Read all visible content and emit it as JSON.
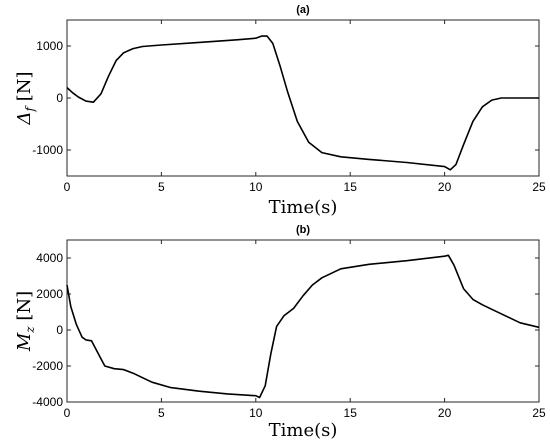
{
  "chart_data": [
    {
      "type": "line",
      "title": "(a)",
      "xlabel": "Time(s)",
      "ylabel_main": "Δ",
      "ylabel_sub": "f",
      "ylabel_unit": " [N]",
      "xlim": [
        0,
        25
      ],
      "ylim": [
        -1500,
        1500
      ],
      "xticks": [
        0,
        5,
        10,
        15,
        20,
        25
      ],
      "yticks": [
        1000,
        0,
        -1000
      ],
      "ytick_labels": [
        "1000",
        "0",
        "-1000"
      ],
      "grid": false,
      "series": [
        {
          "x": [
            0,
            0.3,
            0.6,
            1.0,
            1.4,
            1.8,
            2.2,
            2.6,
            3.0,
            3.5,
            4.0,
            5.0,
            7.0,
            9.0,
            10.0,
            10.3,
            10.6,
            10.9,
            11.3,
            11.7,
            12.2,
            12.8,
            13.5,
            14.5,
            16.0,
            18.0,
            20.0,
            20.3,
            20.6,
            21.0,
            21.5,
            22.0,
            22.5,
            23.0,
            24.0,
            25.0
          ],
          "y": [
            200,
            100,
            20,
            -60,
            -80,
            80,
            420,
            720,
            870,
            950,
            990,
            1020,
            1070,
            1120,
            1150,
            1190,
            1190,
            1050,
            600,
            100,
            -450,
            -850,
            -1050,
            -1130,
            -1180,
            -1240,
            -1320,
            -1380,
            -1280,
            -900,
            -450,
            -170,
            -40,
            0,
            0,
            0
          ]
        }
      ]
    },
    {
      "type": "line",
      "title": "(b)",
      "xlabel": "Time(s)",
      "ylabel_main": "M",
      "ylabel_sub": "z",
      "ylabel_unit": " [N]",
      "xlim": [
        0,
        25
      ],
      "ylim": [
        -4000,
        5000
      ],
      "xticks": [
        0,
        5,
        10,
        15,
        20,
        25
      ],
      "yticks": [
        4000,
        2000,
        0,
        -2000,
        -4000
      ],
      "ytick_labels": [
        "4000",
        "2000",
        "0",
        "-2000",
        "-4000"
      ],
      "grid": false,
      "series": [
        {
          "x": [
            0,
            0.2,
            0.5,
            0.8,
            1.0,
            1.3,
            1.6,
            2.0,
            2.5,
            3.0,
            3.5,
            4.5,
            5.5,
            7.0,
            8.5,
            10.0,
            10.2,
            10.5,
            10.8,
            11.1,
            11.5,
            12.0,
            12.5,
            13.0,
            13.5,
            14.5,
            16.0,
            18.0,
            20.0,
            20.2,
            20.5,
            21.0,
            21.5,
            22.0,
            23.0,
            24.0,
            25.0
          ],
          "y": [
            2500,
            1300,
            300,
            -400,
            -550,
            -600,
            -1200,
            -2000,
            -2150,
            -2200,
            -2400,
            -2900,
            -3200,
            -3400,
            -3550,
            -3650,
            -3750,
            -3100,
            -1300,
            200,
            800,
            1200,
            1900,
            2500,
            2900,
            3400,
            3650,
            3850,
            4100,
            4150,
            3600,
            2300,
            1700,
            1400,
            900,
            400,
            150
          ]
        }
      ]
    }
  ]
}
